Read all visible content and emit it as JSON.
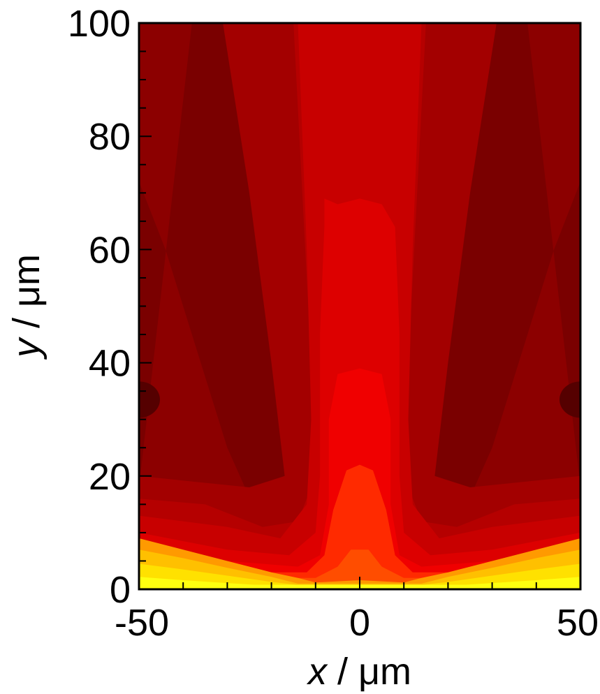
{
  "chart_data": {
    "type": "heatmap",
    "title": "",
    "xlabel_var": "x",
    "xlabel_unit": " / μm",
    "ylabel_var": "y",
    "ylabel_unit": " / μm",
    "xlim": [
      -50,
      50
    ],
    "ylim": [
      0,
      100
    ],
    "x_ticks": [
      -50,
      0,
      50
    ],
    "x_tick_labels": [
      "-50",
      "0",
      "50"
    ],
    "y_ticks": [
      0,
      20,
      40,
      60,
      80,
      100
    ],
    "y_tick_labels": [
      "0",
      "20",
      "40",
      "60",
      "80",
      "100"
    ],
    "colormap": [
      "#550000",
      "#7a0000",
      "#8c0000",
      "#a30000",
      "#b50000",
      "#c80000",
      "#dd0000",
      "#f00000",
      "#ff2a00",
      "#ff4d00",
      "#ff7300",
      "#ff9a00",
      "#ffc000",
      "#ffe100",
      "#ffff10"
    ],
    "grid": false,
    "legend": "none",
    "field_description_points": [
      {
        "x": 0,
        "y": 100,
        "level": 6
      },
      {
        "x": -25,
        "y": 100,
        "level": 3
      },
      {
        "x": -45,
        "y": 100,
        "level": 1
      },
      {
        "x": 0,
        "y": 60,
        "level": 7
      },
      {
        "x": 0,
        "y": 35,
        "level": 8
      },
      {
        "x": 0,
        "y": 18,
        "level": 9
      },
      {
        "x": 0,
        "y": 5,
        "level": 10
      },
      {
        "x": -50,
        "y": 33,
        "level": 0
      },
      {
        "x": 50,
        "y": 33,
        "level": 0
      },
      {
        "x": -50,
        "y": 0,
        "level": 14
      }
    ]
  }
}
